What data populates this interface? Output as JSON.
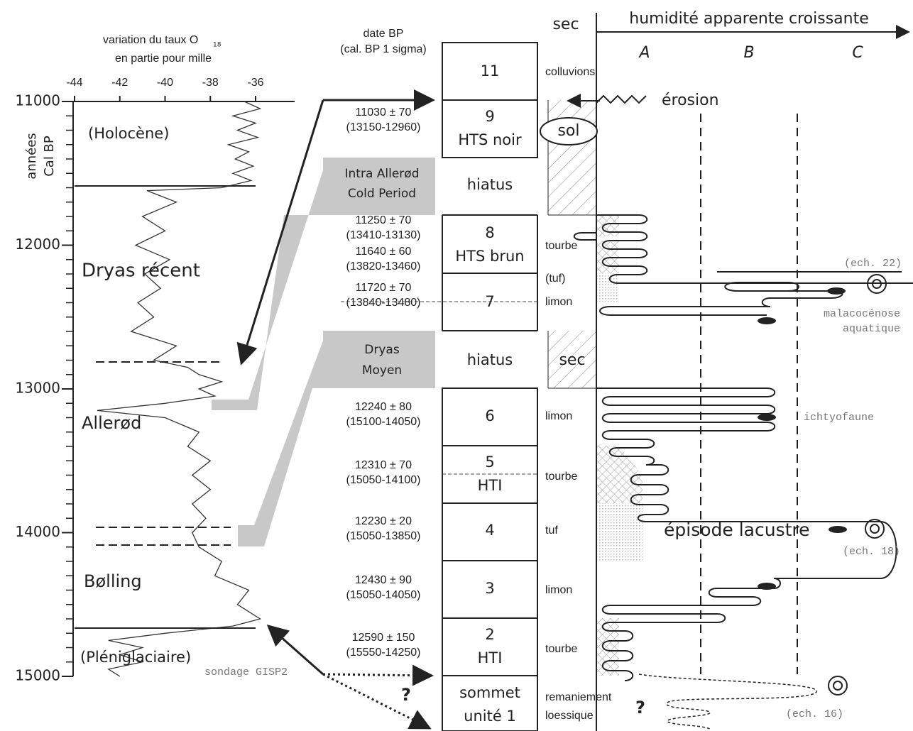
{
  "isotope_panel": {
    "title": "variation du taux O",
    "title_sub": "18",
    "title_line2": "en partie pour mille",
    "y_axis_label": [
      "années",
      "Cal BP"
    ],
    "xlim": [
      -44,
      -35
    ],
    "xticks": [
      -44,
      -42,
      -40,
      -38,
      -36
    ],
    "ylim": [
      11000,
      15000
    ],
    "yticks": [
      11000,
      12000,
      13000,
      14000,
      15000
    ],
    "curve": {
      "age": [
        11000,
        11050,
        11100,
        11150,
        11200,
        11250,
        11300,
        11350,
        11400,
        11450,
        11500,
        11550,
        11600,
        11620,
        11700,
        11800,
        11900,
        12000,
        12100,
        12200,
        12300,
        12400,
        12500,
        12600,
        12700,
        12800,
        12850,
        12900,
        12950,
        13000,
        13050,
        13100,
        13150,
        13200,
        13300,
        13400,
        13500,
        13600,
        13700,
        13800,
        13900,
        14000,
        14100,
        14200,
        14300,
        14400,
        14500,
        14600,
        14650,
        14700,
        14750,
        14800,
        14850,
        14900,
        14950,
        15000
      ],
      "d18o": [
        -36.5,
        -35.8,
        -37,
        -36,
        -36.8,
        -35.9,
        -37.2,
        -36.3,
        -36.9,
        -36.1,
        -37,
        -36.2,
        -37.5,
        -40.8,
        -39.5,
        -41,
        -40,
        -41.3,
        -39.8,
        -40.9,
        -40.2,
        -41.2,
        -40.5,
        -41.5,
        -39.5,
        -40.5,
        -39,
        -38.5,
        -37.5,
        -38.5,
        -37.8,
        -40,
        -43,
        -40,
        -38.5,
        -39,
        -38,
        -38.8,
        -38,
        -38.8,
        -38.2,
        -38.8,
        -38.5,
        -37.5,
        -37.8,
        -36.3,
        -36.8,
        -35.8,
        -37,
        -40,
        -42.5,
        -41,
        -42,
        -41,
        -42.5,
        -42
      ]
    },
    "periods": [
      "(Holocène)",
      "Dryas récent",
      "Allerød",
      "Bølling",
      "(Pléniglaciaire)"
    ],
    "core": "sondage GISP2"
  },
  "dates": {
    "header": [
      "date BP",
      "(cal. BP 1 sigma)"
    ],
    "entries": [
      [
        "11030 ± 70",
        "(13150-12960)"
      ],
      [
        "11250 ± 70",
        "(13410-13130)"
      ],
      [
        "11640 ± 60",
        "(13820-13460)"
      ],
      [
        "11720 ± 70",
        "(13840-13480)"
      ],
      [
        "12240 ± 80",
        "(15100-14050)"
      ],
      [
        "12310 ± 70",
        "(15050-14100)"
      ],
      [
        "12230 ± 20",
        "(15050-13850)"
      ],
      [
        "12430 ± 90",
        "(15050-14050)"
      ],
      [
        "12590 ± 150",
        "(15550-14250)"
      ]
    ],
    "question": "?"
  },
  "cold_periods": [
    [
      "Intra Allerød",
      "Cold Period"
    ],
    [
      "Dryas",
      "Moyen"
    ]
  ],
  "units": [
    [
      "11"
    ],
    [
      "9",
      "HTS noir"
    ],
    [
      "hiatus"
    ],
    [
      "8",
      "HTS brun"
    ],
    [
      "7"
    ],
    [
      "hiatus"
    ],
    [
      "6"
    ],
    [
      "5",
      "HTI"
    ],
    [
      "4"
    ],
    [
      "3"
    ],
    [
      "2",
      "HTI"
    ],
    [
      "sommet",
      "unité 1"
    ]
  ],
  "lithology": [
    "colluvions",
    "tourbe",
    "(tuf)",
    "limon",
    "limon",
    "tourbe",
    "tuf",
    "limon",
    "tourbe",
    "remaniement",
    "loessique"
  ],
  "humidity": {
    "dry": "sec",
    "title": "humidité apparente croissante",
    "classes": [
      "A",
      "B",
      "C"
    ]
  },
  "annotations": {
    "erosion": "érosion",
    "soil": "sol",
    "dry_box": "sec",
    "lake": "épisode lacustre",
    "samples": [
      "(ech. 22)",
      "(ech. 18)",
      "(ech. 16)"
    ],
    "mollusc": [
      "malacocénose",
      "aquatique"
    ],
    "fish": "ichtyofaune",
    "question": "?"
  }
}
